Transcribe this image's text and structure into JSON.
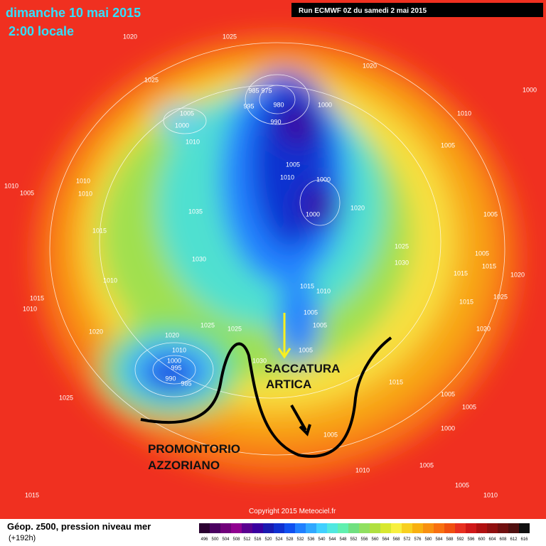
{
  "header": {
    "date": "dimanche 10 mai 2015",
    "time": "2:00 locale",
    "run": "Run ECMWF 0Z du samedi 2 mai 2015"
  },
  "annotations": {
    "trough": [
      "SACCATURA",
      "ARTICA"
    ],
    "ridge": [
      "PROMONTORIO",
      "AZZORIANO"
    ]
  },
  "isobar_labels": [
    "1020",
    "1025",
    "1020",
    "1025",
    "985",
    "975",
    "980",
    "995",
    "1000",
    "1005",
    "1000",
    "990",
    "1010",
    "1010",
    "1005",
    "1005",
    "1000",
    "1010",
    "1010",
    "1005",
    "1010",
    "1010",
    "1035",
    "1000",
    "1020",
    "1005",
    "1015",
    "1025",
    "1005",
    "1030",
    "1030",
    "1015",
    "1015",
    "1020",
    "1010",
    "1015",
    "1010",
    "1015",
    "1010",
    "1005",
    "1005",
    "1015",
    "1025",
    "1020",
    "1020",
    "1025",
    "1025",
    "1020",
    "1005",
    "1010",
    "1000",
    "995",
    "990",
    "985",
    "1030",
    "1015",
    "1005",
    "1025",
    "1005",
    "1000",
    "1005",
    "1010",
    "1005",
    "1005",
    "1010",
    "1015",
    "1000"
  ],
  "footer": {
    "legend_title": "Géop. z500, pression niveau mer",
    "lead": "(+192h)",
    "copyright": "Copyright 2015 Meteociel.fr"
  },
  "colorbar": {
    "ticks": [
      496,
      500,
      504,
      508,
      512,
      516,
      520,
      524,
      528,
      532,
      536,
      540,
      544,
      548,
      552,
      556,
      560,
      564,
      568,
      572,
      576,
      580,
      584,
      588,
      592,
      596,
      600,
      604,
      608,
      612,
      616
    ],
    "colors": [
      "#2a0030",
      "#4a0060",
      "#70007a",
      "#900090",
      "#5a0090",
      "#3a00a0",
      "#1a1ab0",
      "#1030d0",
      "#1050f0",
      "#2080ff",
      "#30a8ff",
      "#40d0ff",
      "#50e8e0",
      "#60f0b0",
      "#70e080",
      "#90e060",
      "#b0e040",
      "#d8e830",
      "#f8f040",
      "#f8d020",
      "#f8b010",
      "#f89010",
      "#f87010",
      "#f05010",
      "#e83020",
      "#d01818",
      "#b01010",
      "#901010",
      "#701010",
      "#501010",
      "#101010"
    ]
  }
}
